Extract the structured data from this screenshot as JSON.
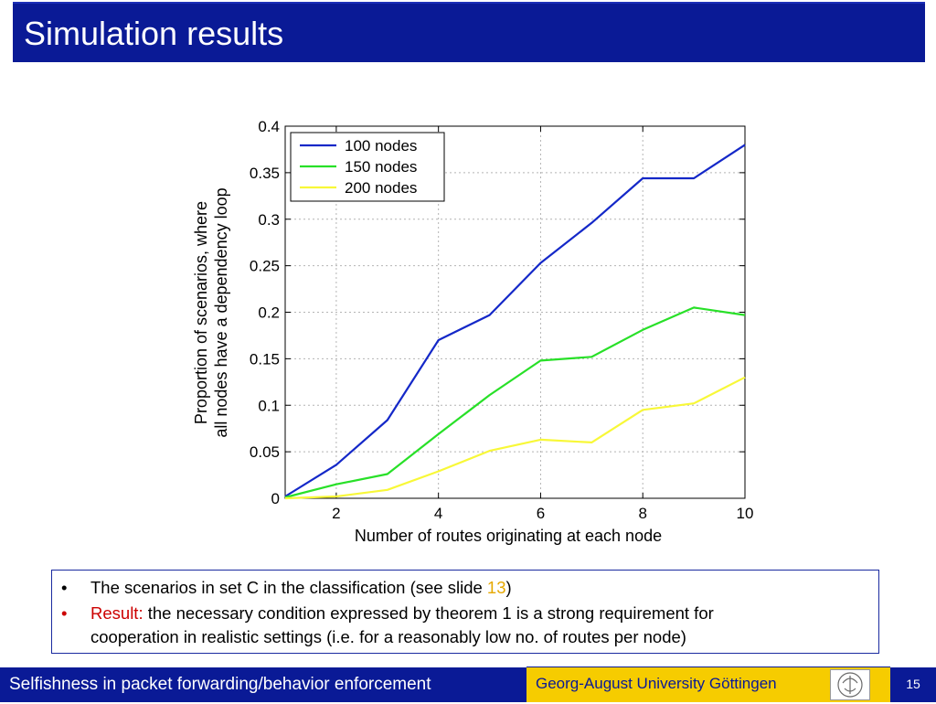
{
  "slide": {
    "title": "Simulation results",
    "page_number": "15"
  },
  "footer": {
    "left_text": "Selfishness in packet forwarding/behavior enforcement",
    "university": "Georg-August University Göttingen",
    "logo_name": "university-seal-logo"
  },
  "bullets": [
    {
      "marker": "•",
      "parts": [
        "The scenarios in set C in the classification (see slide ",
        "13",
        ")"
      ]
    },
    {
      "marker": "•",
      "label": "Result:",
      "line1": " the necessary condition expressed by theorem 1 is a strong requirement for",
      "line2": "cooperation in realistic settings (i.e. for a reasonably low no. of routes per node)"
    }
  ],
  "colors": {
    "title_bar": "#0a1a96",
    "footer_accent": "#f6cc00",
    "highlight_red": "#cc0000",
    "highlight_orange": "#e6a800"
  },
  "chart_data": {
    "type": "line",
    "xlabel": "Number of routes originating at each node",
    "ylabel_line1": "Proportion of scenarios, where",
    "ylabel_line2": "all nodes have a dependency loop",
    "xlim": [
      1,
      10
    ],
    "ylim": [
      0,
      0.4
    ],
    "xticks": [
      2,
      4,
      6,
      8,
      10
    ],
    "yticks": [
      0,
      0.05,
      0.1,
      0.15,
      0.2,
      0.25,
      0.3,
      0.35,
      0.4
    ],
    "ytick_labels": [
      "0",
      "0.05",
      "0.1",
      "0.15",
      "0.2",
      "0.25",
      "0.3",
      "0.35",
      "0.4"
    ],
    "grid": true,
    "legend_position": "top-left",
    "x": [
      1,
      2,
      3,
      4,
      5,
      6,
      7,
      8,
      9,
      10
    ],
    "series": [
      {
        "name": "100 nodes",
        "color": "#1428c8",
        "values": [
          0.002,
          0.036,
          0.084,
          0.17,
          0.197,
          0.253,
          0.296,
          0.344,
          0.344,
          0.38
        ]
      },
      {
        "name": "150 nodes",
        "color": "#28e028",
        "values": [
          0.001,
          0.015,
          0.026,
          0.069,
          0.111,
          0.148,
          0.152,
          0.181,
          0.205,
          0.197
        ]
      },
      {
        "name": "200 nodes",
        "color": "#f8f838",
        "values": [
          0.0,
          0.002,
          0.009,
          0.029,
          0.051,
          0.063,
          0.06,
          0.095,
          0.102,
          0.13
        ]
      }
    ]
  }
}
